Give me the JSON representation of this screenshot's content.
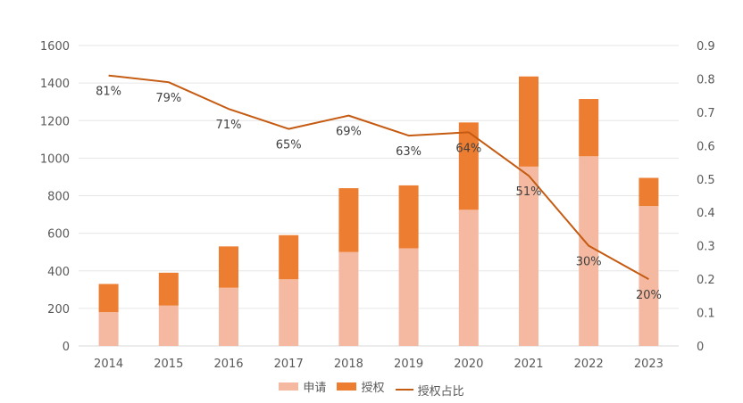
{
  "chart_data": {
    "type": "bar",
    "title": "",
    "xlabel": "",
    "ylabel": "",
    "categories": [
      "2014",
      "2015",
      "2016",
      "2017",
      "2018",
      "2019",
      "2020",
      "2021",
      "2022",
      "2023"
    ],
    "series": [
      {
        "name": "申请",
        "kind": "bar",
        "stack": "s",
        "color": "#F4B9A0",
        "values": [
          180,
          215,
          310,
          355,
          500,
          520,
          725,
          955,
          1010,
          745
        ]
      },
      {
        "name": "授权",
        "kind": "bar",
        "stack": "s",
        "color": "#ED7D31",
        "values": [
          150,
          175,
          220,
          235,
          340,
          335,
          465,
          480,
          305,
          150
        ]
      },
      {
        "name": "授权占比",
        "kind": "line",
        "axis": "right",
        "color": "#C55A11",
        "values": [
          0.81,
          0.79,
          0.71,
          0.65,
          0.69,
          0.63,
          0.64,
          0.51,
          0.3,
          0.2
        ],
        "labels": [
          "81%",
          "79%",
          "71%",
          "65%",
          "69%",
          "63%",
          "64%",
          "51%",
          "30%",
          "20%"
        ]
      }
    ],
    "ylim": [
      0,
      1600
    ],
    "yticks": [
      "0",
      "200",
      "400",
      "600",
      "800",
      "1000",
      "1200",
      "1400",
      "1600"
    ],
    "y2lim": [
      0,
      0.9
    ],
    "y2ticks": [
      "0",
      "0.1",
      "0.2",
      "0.3",
      "0.4",
      "0.5",
      "0.6",
      "0.7",
      "0.8",
      "0.9"
    ],
    "grid": true,
    "legend_position": "bottom"
  }
}
